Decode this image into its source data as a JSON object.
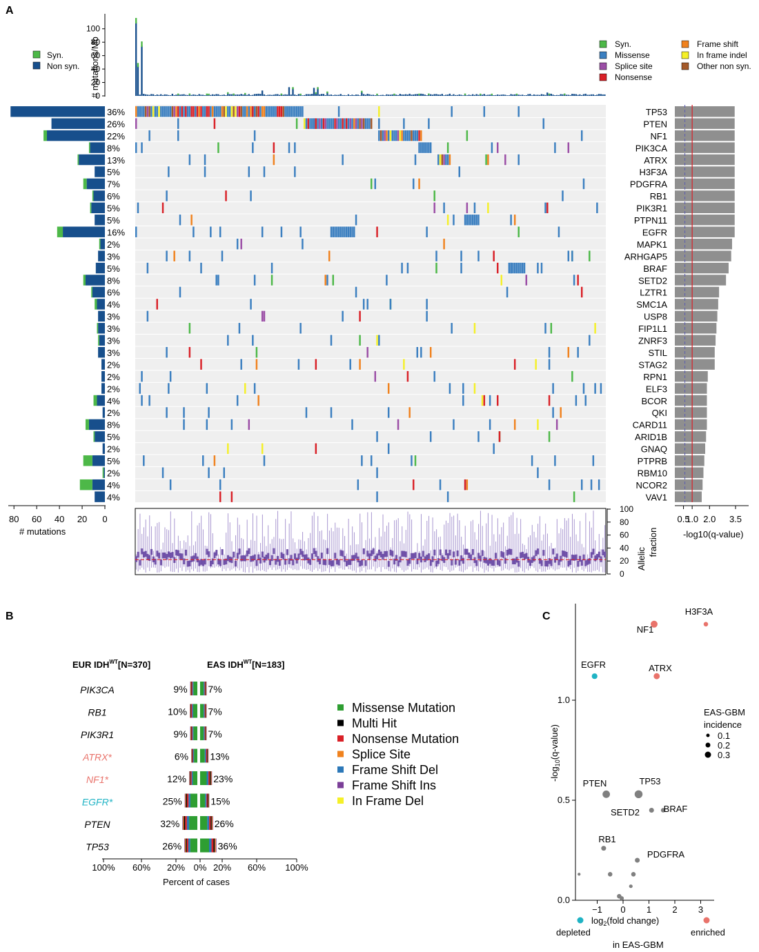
{
  "panels": {
    "a": "A",
    "b": "B",
    "c": "C"
  },
  "colors": {
    "syn": "#4db848",
    "nonsyn": "#174f8c",
    "missense": "#3b7fc0",
    "splice": "#9b4ea6",
    "nonsense": "#d92027",
    "frameshift": "#f0821e",
    "inframe": "#f5f028",
    "othernonsyn": "#a45a2a",
    "grid_bg": "#efefef",
    "qbar": "#8f8f8f",
    "violin": "#6f50a8",
    "red": "#d92027",
    "pink": "#e9736b",
    "cyan": "#1fb3c4",
    "grey_pt": "#808080"
  },
  "chart_data": [
    {
      "type": "bar",
      "id": "tmb",
      "ylabel": "# mutations/Mb",
      "yticks": [
        0,
        20,
        40,
        60,
        80,
        100
      ],
      "ylim": [
        0,
        110
      ],
      "legend": [
        "Syn.",
        "Non syn."
      ],
      "top_values_approx": [
        110,
        36,
        75,
        25,
        30,
        20
      ]
    },
    {
      "type": "bar",
      "id": "gene_mutation_counts",
      "genes": [
        "TP53",
        "PTEN",
        "NF1",
        "PIK3CA",
        "ATRX",
        "H3F3A",
        "PDGFRA",
        "RB1",
        "PIK3R1",
        "PTPN11",
        "EGFR",
        "MAPK1",
        "ARHGAP5",
        "BRAF",
        "SETD2",
        "LZTR1",
        "SMC1A",
        "USP8",
        "FIP1L1",
        "ZNRF3",
        "STIL",
        "STAG2",
        "RPN1",
        "ELF3",
        "BCOR",
        "QKI",
        "CARD11",
        "ARID1B",
        "GNAQ",
        "PTPRB",
        "RBM10",
        "NCOR2",
        "VAV1"
      ],
      "percents": [
        "36%",
        "26%",
        "22%",
        "8%",
        "13%",
        "5%",
        "7%",
        "6%",
        "5%",
        "5%",
        "16%",
        "2%",
        "3%",
        "5%",
        "8%",
        "6%",
        "4%",
        "3%",
        "3%",
        "3%",
        "3%",
        "2%",
        "2%",
        "2%",
        "4%",
        "2%",
        "8%",
        "5%",
        "2%",
        "5%",
        "2%",
        "4%",
        "4%"
      ],
      "nonsyn_counts": [
        83,
        47,
        51,
        13,
        23,
        9,
        16,
        10,
        12,
        9,
        37,
        4,
        6,
        8,
        17,
        11,
        7,
        6,
        6,
        5,
        6,
        3,
        3,
        3,
        7,
        2,
        14,
        9,
        2,
        11,
        1,
        11,
        9
      ],
      "syn_counts": [
        0,
        0,
        3,
        1,
        1,
        0,
        3,
        1,
        1,
        0,
        5,
        1,
        0,
        0,
        2,
        1,
        2,
        0,
        1,
        1,
        0,
        0,
        0,
        0,
        3,
        0,
        3,
        1,
        0,
        8,
        1,
        11,
        0
      ],
      "xlabel": "# mutations",
      "xticks": [
        80,
        60,
        40,
        20,
        0
      ]
    },
    {
      "type": "bar",
      "id": "qvalue",
      "genes": [
        "TP53",
        "PTEN",
        "NF1",
        "PIK3CA",
        "ATRX",
        "H3F3A",
        "PDGFRA",
        "RB1",
        "PIK3R1",
        "PTPN11",
        "EGFR",
        "MAPK1",
        "ARHGAP5",
        "BRAF",
        "SETD2",
        "LZTR1",
        "SMC1A",
        "USP8",
        "FIP1L1",
        "ZNRF3",
        "STIL",
        "STAG2",
        "RPN1",
        "ELF3",
        "BCOR",
        "QKI",
        "CARD11",
        "ARID1B",
        "GNAQ",
        "PTPRB",
        "RBM10",
        "NCOR2",
        "VAV1"
      ],
      "values": [
        3.45,
        3.45,
        3.45,
        3.45,
        3.45,
        3.45,
        3.45,
        3.45,
        3.45,
        3.45,
        3.45,
        3.3,
        3.25,
        3.1,
        2.95,
        2.55,
        2.5,
        2.45,
        2.4,
        2.35,
        2.3,
        2.3,
        1.9,
        1.85,
        1.85,
        1.85,
        1.85,
        1.8,
        1.75,
        1.7,
        1.65,
        1.6,
        1.55
      ],
      "xlabel": "-log10(q-value)",
      "xticks": [
        "0.5",
        "1.0",
        "2.0",
        "3.5"
      ],
      "xtick_values": [
        0.5,
        1.0,
        2.0,
        3.5
      ]
    },
    {
      "type": "scatter",
      "id": "allelic_fraction",
      "ylabel": "Allelic fraction",
      "yticks": [
        0,
        20,
        40,
        60,
        80,
        100
      ],
      "ylim": [
        0,
        100
      ],
      "threshold": 22
    },
    {
      "type": "bar",
      "id": "co_bar",
      "header_left": "EUR IDH",
      "header_left_sup": "WT",
      "header_left_n": "[N=370]",
      "header_right": "EAS IDH",
      "header_right_sup": "WT",
      "header_right_n": "[N=183]",
      "genes": [
        "PIK3CA",
        "RB1",
        "PIK3R1",
        "ATRX*",
        "NF1*",
        "EGFR*",
        "PTEN",
        "TP53"
      ],
      "gene_colors": [
        "#000000",
        "#000000",
        "#000000",
        "#e9736b",
        "#e9736b",
        "#1fb3c4",
        "#000000",
        "#000000"
      ],
      "left_labels": [
        "9%",
        "10%",
        "9%",
        "6%",
        "12%",
        "25%",
        "32%",
        "26%"
      ],
      "right_labels": [
        "7%",
        "7%",
        "7%",
        "13%",
        "23%",
        "15%",
        "26%",
        "36%"
      ],
      "left_values": [
        9,
        10,
        9,
        6,
        12,
        25,
        32,
        26
      ],
      "right_values": [
        7,
        7,
        7,
        13,
        23,
        15,
        26,
        36
      ],
      "xlabel": "Percent of cases",
      "xticks": [
        "100%",
        "60%",
        "20%",
        "0%",
        "20%",
        "60%",
        "100%"
      ],
      "legend": [
        "Missense Mutation",
        "Multi Hit",
        "Nonsense Mutation",
        "Splice Site",
        "Frame Shift Del",
        "Frame Shift Ins",
        "In Frame Del"
      ],
      "legend_colors": [
        "#2e9e32",
        "#000000",
        "#d92027",
        "#f0821e",
        "#2c78b8",
        "#7b3f98",
        "#f5f028"
      ]
    },
    {
      "type": "scatter",
      "id": "fold_change",
      "xlabel": "log2(fold change)",
      "xlabel_sub": "in EAS-GBM",
      "ylabel": "-log10(q-value)",
      "xticks": [
        -1,
        0,
        1,
        2,
        3
      ],
      "xlim": [
        -1.8,
        3.6
      ],
      "yticks": [
        0.0,
        0.5,
        1.0
      ],
      "ylim": [
        0,
        1.4
      ],
      "points": [
        {
          "label": "H3F3A",
          "x": 3.2,
          "y": 1.38,
          "size": 0.08,
          "group": "enriched"
        },
        {
          "label": "NF1",
          "x": 1.2,
          "y": 1.38,
          "size": 0.25,
          "group": "enriched"
        },
        {
          "label": "ATRX",
          "x": 1.3,
          "y": 1.12,
          "size": 0.18,
          "group": "enriched"
        },
        {
          "label": "EGFR",
          "x": -1.1,
          "y": 1.12,
          "size": 0.15,
          "group": "depleted"
        },
        {
          "label": "PTEN",
          "x": -0.65,
          "y": 0.53,
          "size": 0.3,
          "group": "other"
        },
        {
          "label": "TP53",
          "x": 0.6,
          "y": 0.53,
          "size": 0.35,
          "group": "other"
        },
        {
          "label": "SETD2",
          "x": 1.1,
          "y": 0.45,
          "size": 0.1,
          "group": "other"
        },
        {
          "label": "BRAF",
          "x": 1.55,
          "y": 0.45,
          "size": 0.08,
          "group": "other"
        },
        {
          "label": "RB1",
          "x": -0.75,
          "y": 0.26,
          "size": 0.1,
          "group": "other"
        },
        {
          "label": "PDGFRA",
          "x": 0.55,
          "y": 0.2,
          "size": 0.1,
          "group": "other"
        },
        {
          "label": "",
          "x": -1.7,
          "y": 0.13,
          "size": 0.02,
          "group": "other"
        },
        {
          "label": "",
          "x": -0.5,
          "y": 0.13,
          "size": 0.08,
          "group": "other"
        },
        {
          "label": "",
          "x": 0.4,
          "y": 0.13,
          "size": 0.08,
          "group": "other"
        },
        {
          "label": "",
          "x": 0.3,
          "y": 0.07,
          "size": 0.04,
          "group": "other"
        },
        {
          "label": "",
          "x": -0.15,
          "y": 0.02,
          "size": 0.08,
          "group": "other"
        },
        {
          "label": "",
          "x": -0.05,
          "y": 0.01,
          "size": 0.06,
          "group": "other"
        }
      ],
      "size_legend_title": [
        "EAS-GBM",
        "incidence"
      ],
      "size_legend": [
        "0.1",
        "0.2",
        "0.3"
      ],
      "bottom_left": "depleted",
      "bottom_right": "enriched"
    }
  ],
  "legend_a": [
    "Syn.",
    "Missense",
    "Splice site",
    "Nonsense",
    "Frame shift",
    "In frame indel",
    "Other non syn."
  ]
}
